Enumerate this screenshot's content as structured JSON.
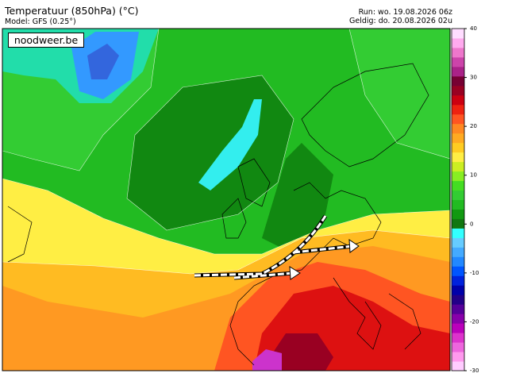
{
  "header": {
    "title": "Temperatuur (850hPa) (°C)",
    "model": "Model: GFS (0.25°)",
    "run": "Run: wo. 19.08.2026 06z",
    "valid": "Geldig: do. 20.08.2026 02u",
    "logo": "noodweer.be"
  },
  "colorbar": {
    "range": [
      -30,
      40
    ],
    "ticks": [
      40,
      30,
      20,
      10,
      0,
      -10,
      -20,
      -30
    ]
  }
}
